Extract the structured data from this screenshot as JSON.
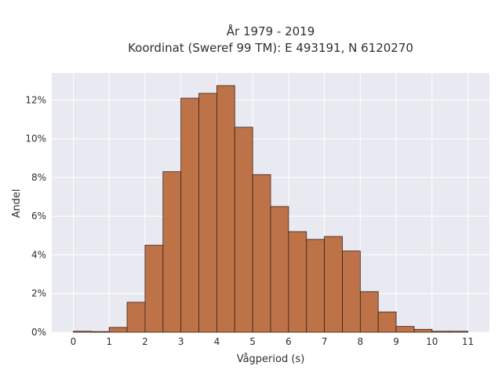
{
  "chart_data": {
    "type": "bar",
    "title_line1": "År 1979 - 2019",
    "title_line2": "Koordinat (Sweref 99 TM): E 493191, N 6120270",
    "xlabel": "Vågperiod (s)",
    "ylabel": "Andel",
    "bin_width": 0.5,
    "bins": [
      {
        "start": 0.0,
        "value": 0.05
      },
      {
        "start": 0.5,
        "value": 0.0
      },
      {
        "start": 1.0,
        "value": 0.25
      },
      {
        "start": 1.5,
        "value": 1.55
      },
      {
        "start": 2.0,
        "value": 4.5
      },
      {
        "start": 2.5,
        "value": 8.3
      },
      {
        "start": 3.0,
        "value": 12.1
      },
      {
        "start": 3.5,
        "value": 12.35
      },
      {
        "start": 4.0,
        "value": 12.75
      },
      {
        "start": 4.5,
        "value": 10.6
      },
      {
        "start": 5.0,
        "value": 8.15
      },
      {
        "start": 5.5,
        "value": 6.5
      },
      {
        "start": 6.0,
        "value": 5.2
      },
      {
        "start": 6.5,
        "value": 4.8
      },
      {
        "start": 7.0,
        "value": 4.95
      },
      {
        "start": 7.5,
        "value": 4.2
      },
      {
        "start": 8.0,
        "value": 2.1
      },
      {
        "start": 8.5,
        "value": 1.05
      },
      {
        "start": 9.0,
        "value": 0.3
      },
      {
        "start": 9.5,
        "value": 0.15
      },
      {
        "start": 10.0,
        "value": 0.05
      },
      {
        "start": 10.5,
        "value": 0.05
      }
    ],
    "xticks": [
      "0",
      "1",
      "2",
      "3",
      "4",
      "5",
      "6",
      "7",
      "8",
      "9",
      "10",
      "11"
    ],
    "yticks": [
      "0%",
      "2%",
      "4%",
      "6%",
      "8%",
      "10%",
      "12%"
    ],
    "xlim": [
      -0.6,
      11.6
    ],
    "ylim": [
      0,
      13.4
    ],
    "grid": true,
    "colors": {
      "bar_fill": "#b9673a",
      "bar_stroke": "#3b2418",
      "plot_bg": "#e9e9f2",
      "grid": "#ffffff"
    }
  }
}
